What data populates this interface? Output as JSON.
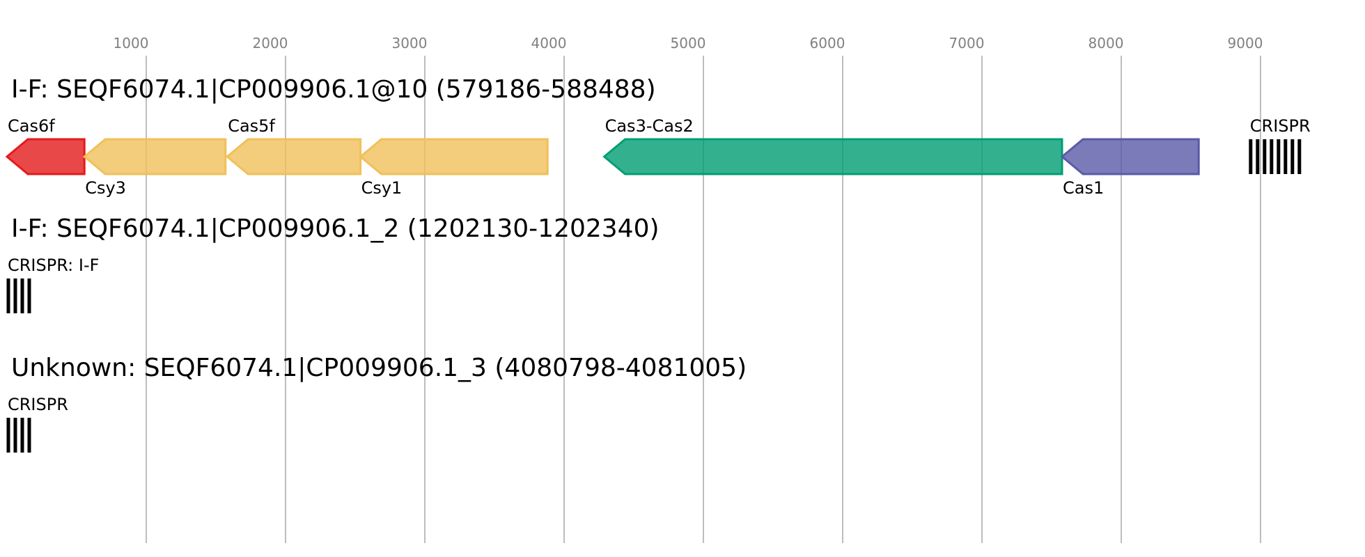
{
  "axis": {
    "xlim": [
      0,
      9750
    ],
    "ticks": [
      1000,
      2000,
      3000,
      4000,
      5000,
      6000,
      7000,
      8000,
      9000
    ]
  },
  "tracks": [
    {
      "title": "I-F: SEQF6074.1|CP009906.1@10 (579186-588488)",
      "features": [
        {
          "label": "Cas6f",
          "start": 0,
          "end": 556,
          "strand": "-",
          "color": "#e41a1c",
          "kind": "gene"
        },
        {
          "label": "Csy3",
          "start": 556,
          "end": 1569,
          "strand": "-",
          "color": "#f0c05a",
          "kind": "gene"
        },
        {
          "label": "Cas5f",
          "start": 1581,
          "end": 2538,
          "strand": "-",
          "color": "#f0c05a",
          "kind": "gene"
        },
        {
          "label": "Csy1",
          "start": 2538,
          "end": 3881,
          "strand": "-",
          "color": "#f0c05a",
          "kind": "gene"
        },
        {
          "label": "Cas3-Cas2",
          "start": 4288,
          "end": 7575,
          "strand": "-",
          "color": "#009e73",
          "kind": "gene"
        },
        {
          "label": "Cas1",
          "start": 7575,
          "end": 8556,
          "strand": "-",
          "color": "#5a5aa8",
          "kind": "gene"
        },
        {
          "label": "CRISPR",
          "start": 8919,
          "end": 9306,
          "kind": "crispr"
        }
      ]
    },
    {
      "title": "I-F: SEQF6074.1|CP009906.1_2 (1202130-1202340)",
      "features": [
        {
          "label": "CRISPR: I-F",
          "start": 0,
          "end": 206,
          "kind": "crispr"
        }
      ]
    },
    {
      "title": "Unknown: SEQF6074.1|CP009906.1_3 (4080798-4081005)",
      "features": [
        {
          "label": "CRISPR",
          "start": 0,
          "end": 206,
          "kind": "crispr"
        }
      ]
    }
  ]
}
